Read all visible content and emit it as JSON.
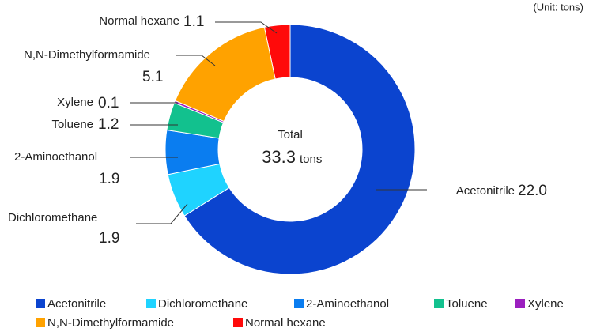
{
  "chart_data": {
    "type": "donut",
    "unit_note": "(Unit: tons)",
    "center_label": "Total",
    "total": 33.3,
    "total_unit": "tons",
    "categories": [
      "Acetonitrile",
      "Dichloromethane",
      "2-Aminoethanol",
      "Toluene",
      "Xylene",
      "N,N-Dimethylformamide",
      "Normal hexane"
    ],
    "values": [
      22.0,
      1.9,
      1.9,
      1.2,
      0.1,
      5.1,
      1.1
    ],
    "value_labels": [
      "22.0",
      "1.9",
      "1.9",
      "1.2",
      "0.1",
      "5.1",
      "1.1"
    ],
    "colors": [
      "#0b44cf",
      "#1fd3ff",
      "#0a7df0",
      "#12c18e",
      "#9b1fbf",
      "#ffa200",
      "#ff0a0a"
    ]
  }
}
